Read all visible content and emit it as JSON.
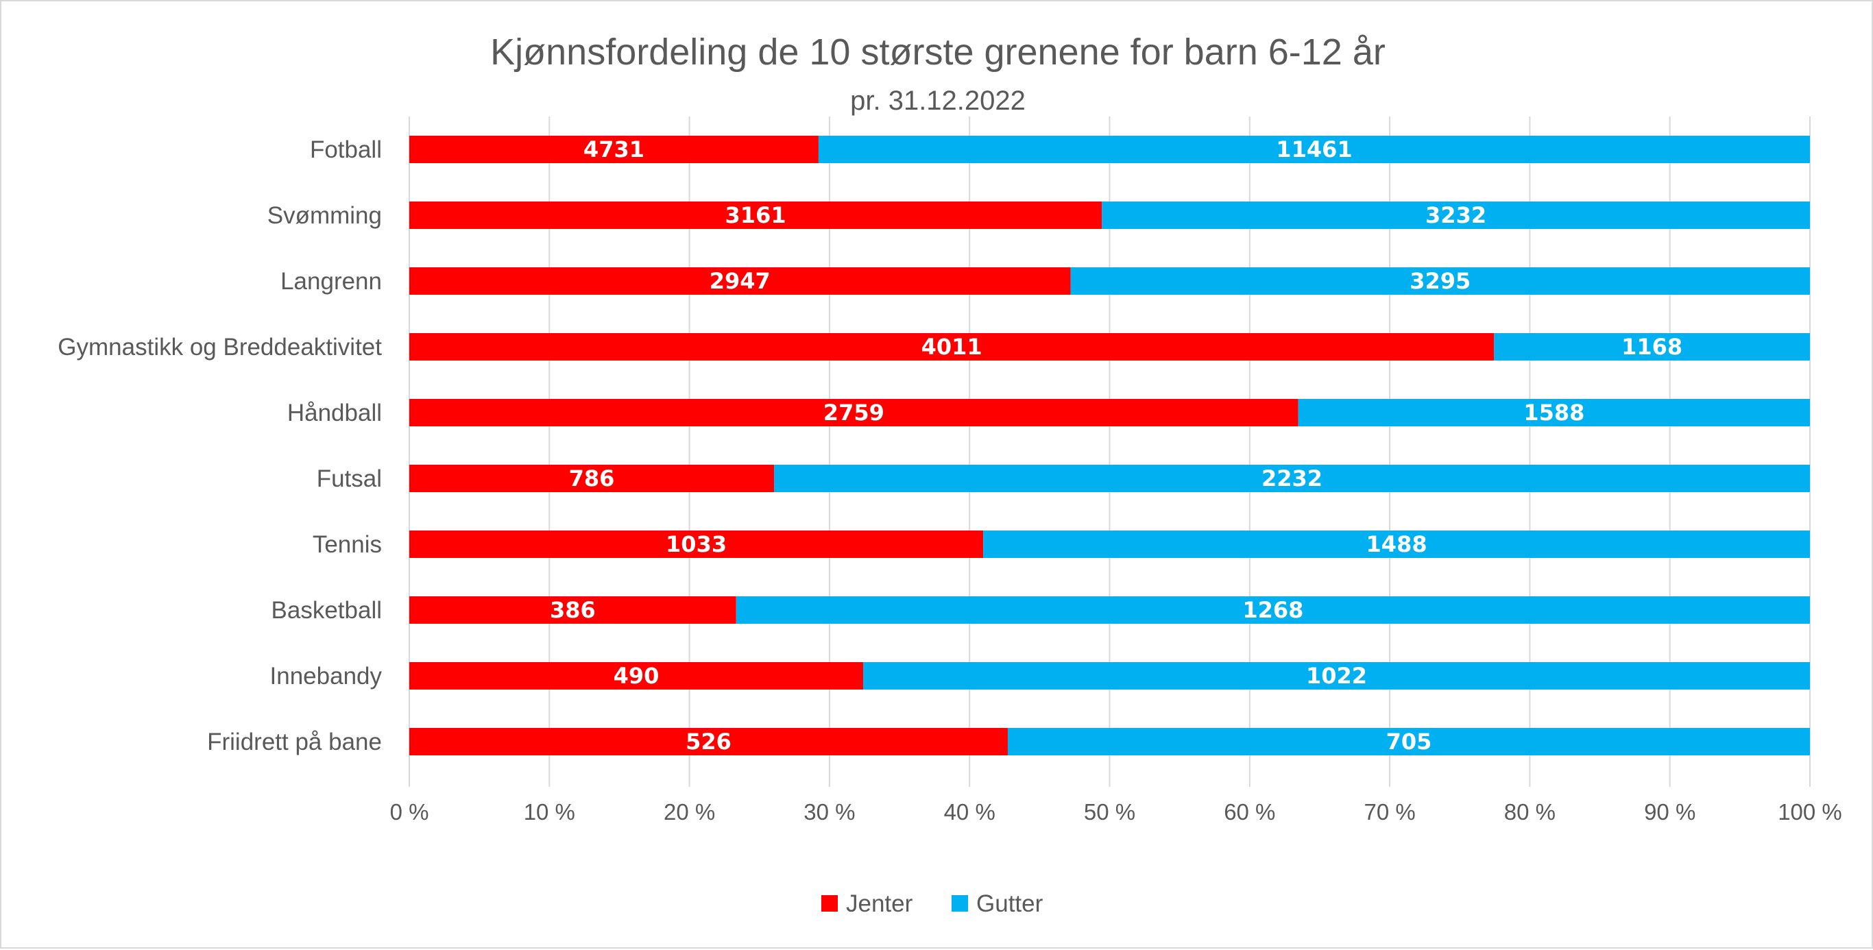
{
  "chart_data": {
    "type": "bar",
    "orientation": "horizontal",
    "stacking": "percent",
    "title": "Kjønnsfordeling de 10 største grenene for barn 6-12 år",
    "subtitle": "pr. 31.12.2022",
    "categories": [
      "Fotball",
      "Svømming",
      "Langrenn",
      "Gymnastikk og Breddeaktivitet",
      "Håndball",
      "Futsal",
      "Tennis",
      "Basketball",
      "Innebandy",
      "Friidrett på bane"
    ],
    "series": [
      {
        "name": "Jenter",
        "color": "#ff0000",
        "values": [
          4731,
          3161,
          2947,
          4011,
          2759,
          786,
          1033,
          386,
          490,
          526
        ]
      },
      {
        "name": "Gutter",
        "color": "#00b0f0",
        "values": [
          11461,
          3232,
          3295,
          1168,
          1588,
          2232,
          1488,
          1268,
          1022,
          705
        ]
      }
    ],
    "x_ticks": [
      "0 %",
      "10 %",
      "20 %",
      "30 %",
      "40 %",
      "50 %",
      "60 %",
      "70 %",
      "80 %",
      "90 %",
      "100 %"
    ],
    "xlim": [
      0,
      100
    ],
    "grid": true,
    "legend_position": "bottom",
    "gridline_color": "#d9d9d9"
  }
}
